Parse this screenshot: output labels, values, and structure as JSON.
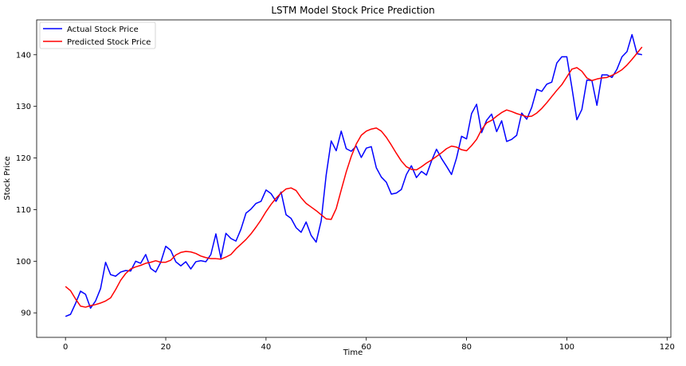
{
  "chart_data": {
    "type": "line",
    "title": "LSTM Model Stock Price Prediction",
    "xlabel": "Time",
    "ylabel": "Stock Price",
    "xlim": [
      -5.75,
      120.75
    ],
    "ylim": [
      85.25,
      146.75
    ],
    "xticks": [
      0,
      20,
      40,
      60,
      80,
      100,
      120
    ],
    "yticks": [
      90,
      100,
      110,
      120,
      130,
      140
    ],
    "grid": false,
    "legend_position": "top-left",
    "series": [
      {
        "name": "Actual Stock Price",
        "color": "#0000ff",
        "x": [
          0,
          1,
          2,
          3,
          4,
          5,
          6,
          7,
          8,
          9,
          10,
          11,
          12,
          13,
          14,
          15,
          16,
          17,
          18,
          19,
          20,
          21,
          22,
          23,
          24,
          25,
          26,
          27,
          28,
          29,
          30,
          31,
          32,
          33,
          34,
          35,
          36,
          37,
          38,
          39,
          40,
          41,
          42,
          43,
          44,
          45,
          46,
          47,
          48,
          49,
          50,
          51,
          52,
          53,
          54,
          55,
          56,
          57,
          58,
          59,
          60,
          61,
          62,
          63,
          64,
          65,
          66,
          67,
          68,
          69,
          70,
          71,
          72,
          73,
          74,
          75,
          76,
          77,
          78,
          79,
          80,
          81,
          82,
          83,
          84,
          85,
          86,
          87,
          88,
          89,
          90,
          91,
          92,
          93,
          94,
          95,
          96,
          97,
          98,
          99,
          100,
          101,
          102,
          103,
          104,
          105,
          106,
          107,
          108,
          109,
          110,
          111,
          112,
          113,
          114,
          115
        ],
        "values": [
          89.3,
          89.7,
          91.8,
          94.2,
          93.6,
          90.9,
          92.3,
          94.7,
          99.8,
          97.4,
          97.1,
          97.9,
          98.2,
          98.1,
          100.0,
          99.6,
          101.3,
          98.6,
          97.9,
          99.8,
          102.9,
          102.1,
          99.9,
          99.1,
          99.9,
          98.5,
          99.9,
          100.1,
          99.9,
          101.3,
          105.3,
          100.6,
          105.4,
          104.4,
          103.9,
          106.2,
          109.3,
          110.1,
          111.2,
          111.6,
          113.8,
          113.1,
          111.6,
          113.4,
          109.0,
          108.3,
          106.5,
          105.6,
          107.6,
          105.0,
          103.7,
          107.8,
          116.7,
          123.3,
          121.4,
          125.2,
          121.8,
          121.3,
          122.3,
          120.1,
          121.9,
          122.2,
          118.1,
          116.3,
          115.3,
          113.0,
          113.2,
          113.9,
          116.8,
          118.5,
          116.2,
          117.4,
          116.7,
          119.4,
          121.7,
          119.9,
          118.4,
          116.8,
          120.0,
          124.2,
          123.7,
          128.6,
          130.4,
          124.9,
          127.3,
          128.5,
          125.1,
          127.2,
          123.2,
          123.6,
          124.4,
          128.7,
          127.5,
          129.8,
          133.3,
          132.9,
          134.3,
          134.7,
          138.4,
          139.6,
          139.6,
          133.7,
          127.4,
          129.4,
          135.1,
          135.0,
          130.2,
          136.1,
          136.1,
          135.6,
          137.2,
          139.6,
          140.6,
          143.9,
          140.2,
          140.0
        ]
      },
      {
        "name": "Predicted Stock Price",
        "color": "#ff0000",
        "x": [
          0,
          1,
          2,
          3,
          4,
          5,
          6,
          7,
          8,
          9,
          10,
          11,
          12,
          13,
          14,
          15,
          16,
          17,
          18,
          19,
          20,
          21,
          22,
          23,
          24,
          25,
          26,
          27,
          28,
          29,
          30,
          31,
          32,
          33,
          34,
          35,
          36,
          37,
          38,
          39,
          40,
          41,
          42,
          43,
          44,
          45,
          46,
          47,
          48,
          49,
          50,
          51,
          52,
          53,
          54,
          55,
          56,
          57,
          58,
          59,
          60,
          61,
          62,
          63,
          64,
          65,
          66,
          67,
          68,
          69,
          70,
          71,
          72,
          73,
          74,
          75,
          76,
          77,
          78,
          79,
          80,
          81,
          82,
          83,
          84,
          85,
          86,
          87,
          88,
          89,
          90,
          91,
          92,
          93,
          94,
          95,
          96,
          97,
          98,
          99,
          100,
          101,
          102,
          103,
          104,
          105,
          106,
          107,
          108,
          109,
          110,
          111,
          112,
          113,
          114,
          115
        ],
        "values": [
          95.1,
          94.3,
          92.7,
          91.3,
          91.1,
          91.4,
          91.6,
          91.9,
          92.3,
          92.9,
          94.5,
          96.3,
          97.6,
          98.5,
          98.9,
          99.2,
          99.6,
          99.8,
          100.1,
          99.8,
          99.8,
          100.2,
          101.2,
          101.7,
          101.9,
          101.8,
          101.5,
          101.0,
          100.7,
          100.5,
          100.5,
          100.4,
          100.8,
          101.3,
          102.4,
          103.3,
          104.2,
          105.3,
          106.6,
          108.0,
          109.6,
          111.0,
          112.2,
          113.2,
          114.0,
          114.2,
          113.7,
          112.3,
          111.2,
          110.5,
          109.8,
          109.0,
          108.2,
          108.1,
          110.2,
          113.8,
          117.3,
          120.3,
          122.7,
          124.4,
          125.2,
          125.6,
          125.8,
          125.2,
          124.0,
          122.5,
          120.9,
          119.4,
          118.3,
          117.8,
          117.7,
          118.3,
          119.0,
          119.6,
          120.3,
          121.0,
          121.8,
          122.3,
          122.1,
          121.6,
          121.4,
          122.4,
          123.6,
          125.5,
          126.8,
          127.3,
          128.1,
          128.8,
          129.3,
          129.0,
          128.6,
          128.3,
          128.0,
          128.1,
          128.7,
          129.6,
          130.7,
          131.9,
          133.1,
          134.2,
          135.7,
          137.2,
          137.5,
          136.8,
          135.5,
          135.0,
          135.3,
          135.5,
          135.6,
          136.0,
          136.5,
          137.1,
          138.0,
          139.1,
          140.3,
          141.5
        ]
      }
    ]
  }
}
